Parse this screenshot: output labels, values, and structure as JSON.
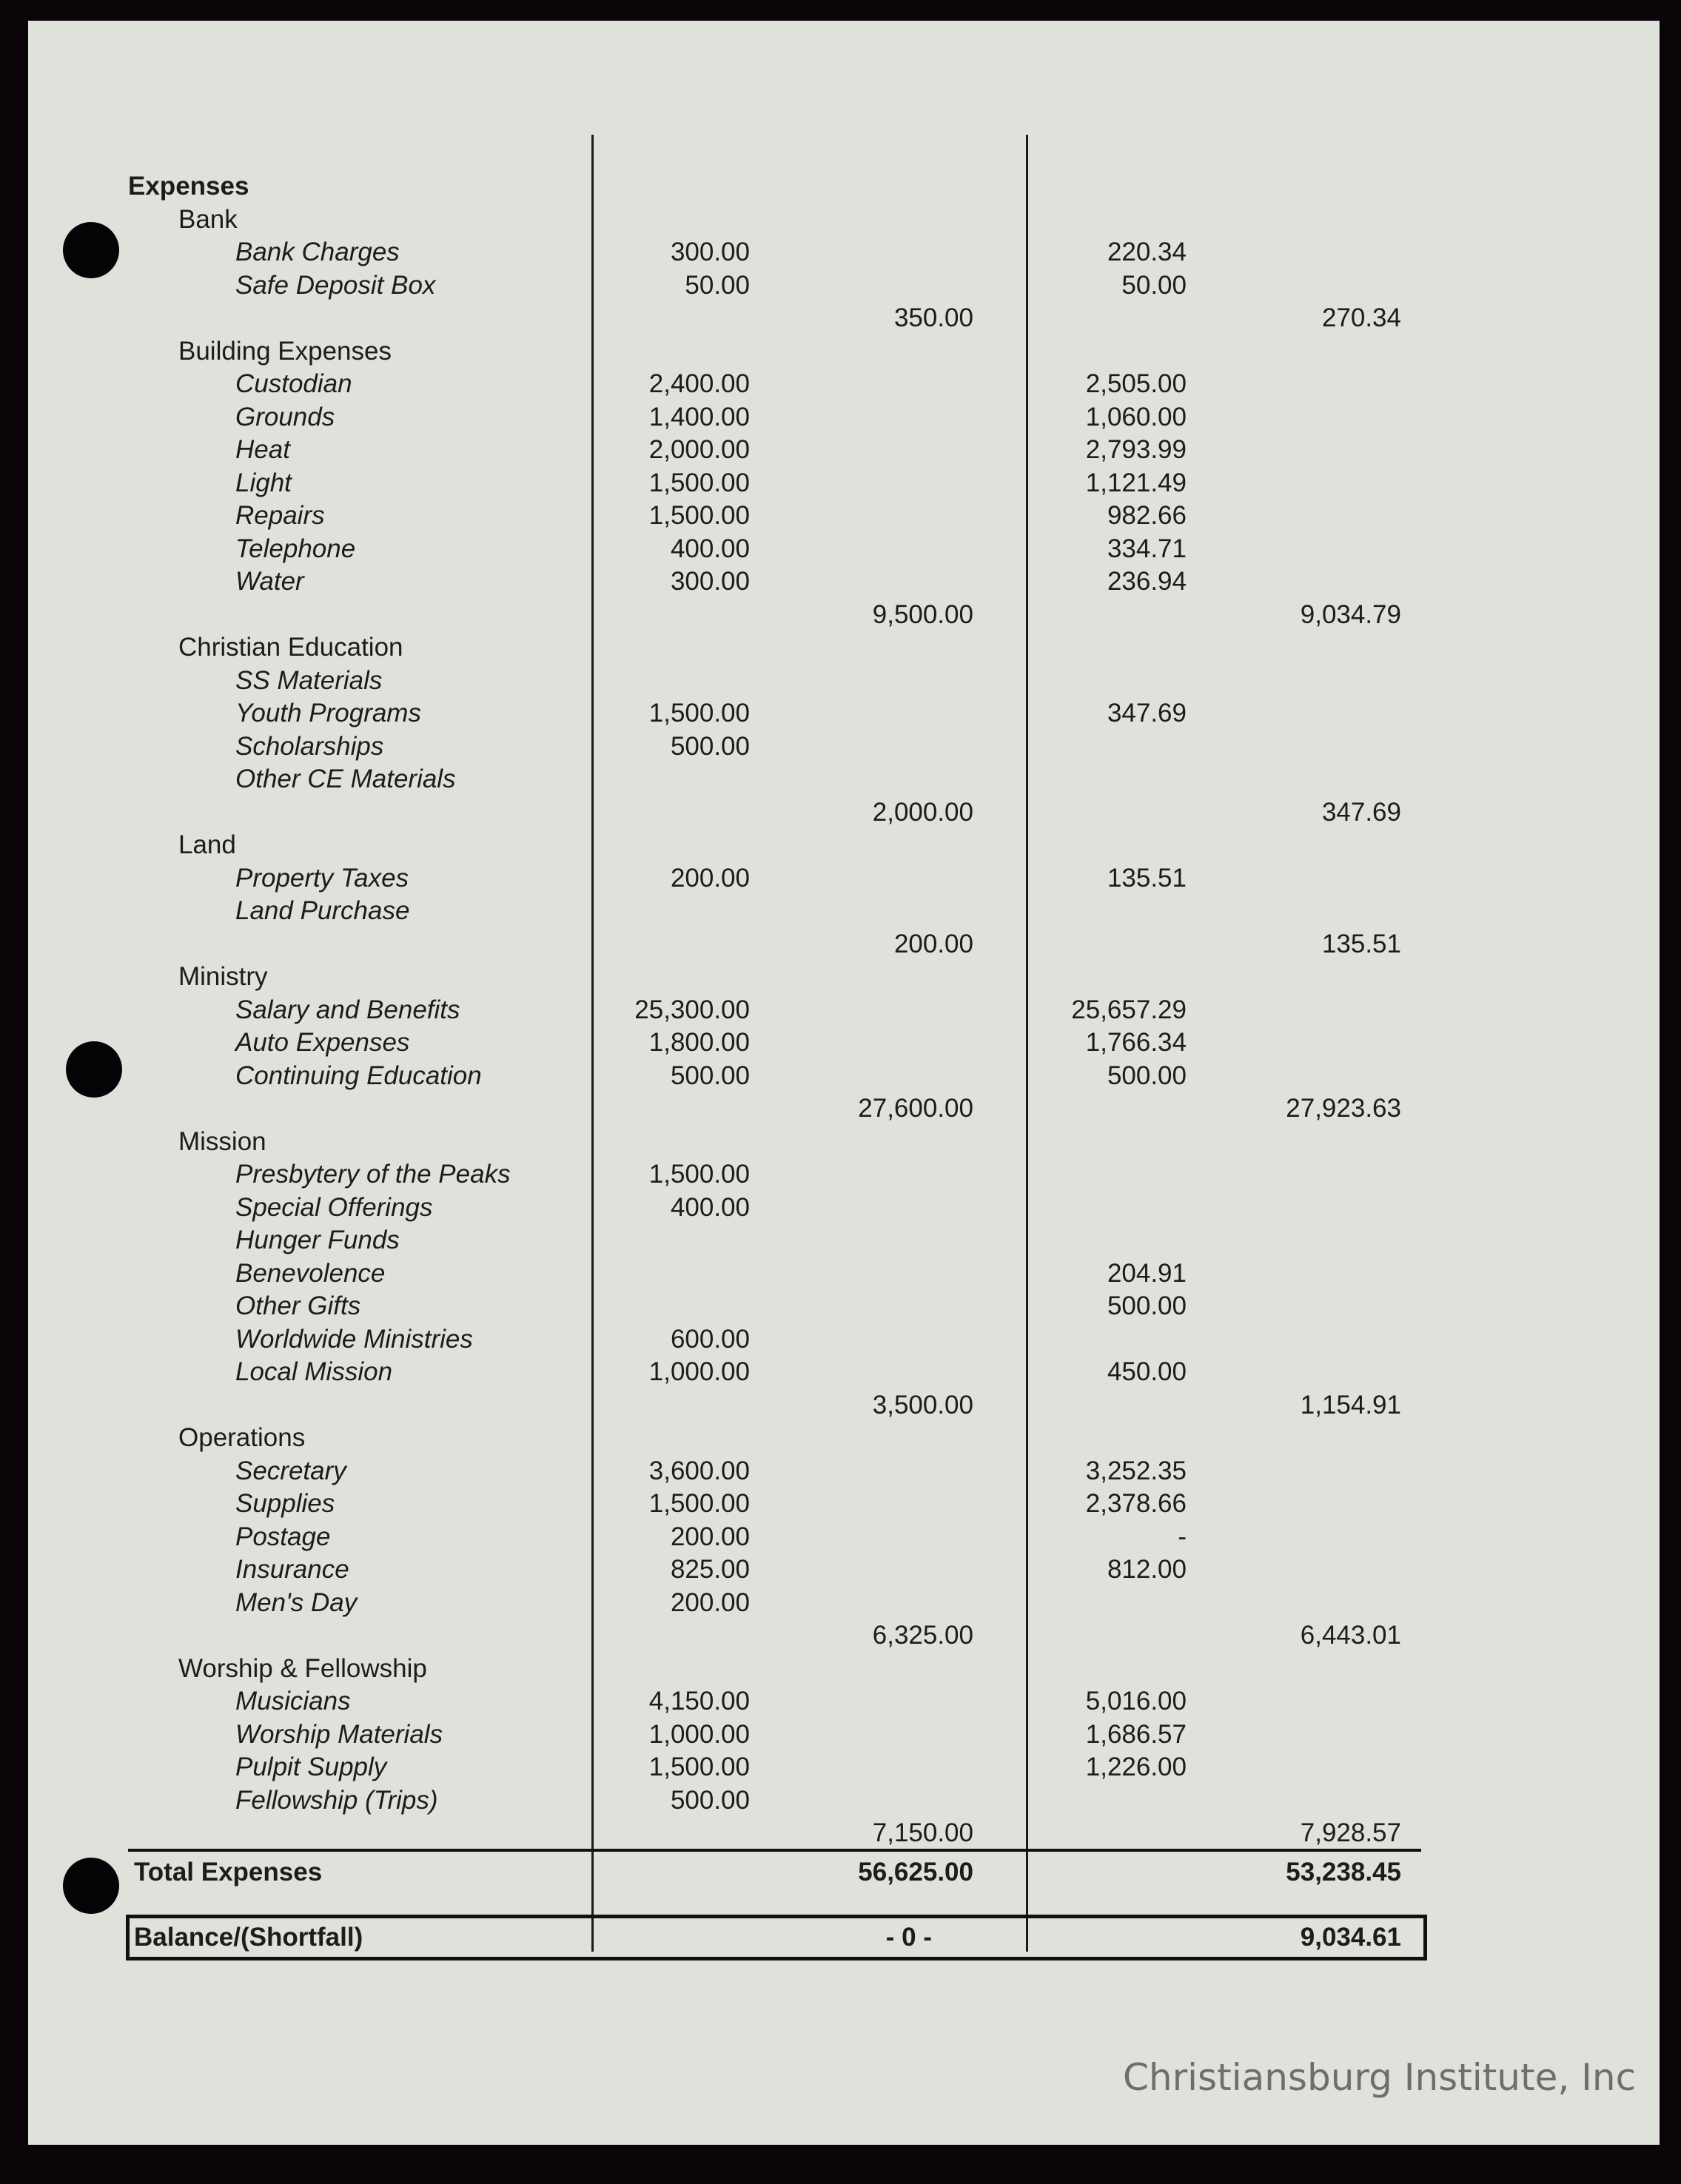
{
  "heading": "Expenses",
  "groups": [
    {
      "name": "Bank",
      "items": [
        {
          "label": "Bank Charges",
          "budget": "300.00",
          "actual": "220.34"
        },
        {
          "label": "Safe Deposit Box",
          "budget": "50.00",
          "actual": "50.00"
        }
      ],
      "budget_total": "350.00",
      "actual_total": "270.34"
    },
    {
      "name": "Building Expenses",
      "items": [
        {
          "label": "Custodian",
          "budget": "2,400.00",
          "actual": "2,505.00"
        },
        {
          "label": "Grounds",
          "budget": "1,400.00",
          "actual": "1,060.00"
        },
        {
          "label": "Heat",
          "budget": "2,000.00",
          "actual": "2,793.99"
        },
        {
          "label": "Light",
          "budget": "1,500.00",
          "actual": "1,121.49"
        },
        {
          "label": "Repairs",
          "budget": "1,500.00",
          "actual": "982.66"
        },
        {
          "label": "Telephone",
          "budget": "400.00",
          "actual": "334.71"
        },
        {
          "label": "Water",
          "budget": "300.00",
          "actual": "236.94"
        }
      ],
      "budget_total": "9,500.00",
      "actual_total": "9,034.79"
    },
    {
      "name": "Christian Education",
      "items": [
        {
          "label": "SS Materials",
          "budget": "",
          "actual": ""
        },
        {
          "label": "Youth Programs",
          "budget": "1,500.00",
          "actual": "347.69"
        },
        {
          "label": "Scholarships",
          "budget": "500.00",
          "actual": ""
        },
        {
          "label": "Other CE Materials",
          "budget": "",
          "actual": ""
        }
      ],
      "budget_total": "2,000.00",
      "actual_total": "347.69"
    },
    {
      "name": "Land",
      "items": [
        {
          "label": "Property Taxes",
          "budget": "200.00",
          "actual": "135.51"
        },
        {
          "label": "Land Purchase",
          "budget": "",
          "actual": ""
        }
      ],
      "budget_total": "200.00",
      "actual_total": "135.51"
    },
    {
      "name": "Ministry",
      "items": [
        {
          "label": "Salary and Benefits",
          "budget": "25,300.00",
          "actual": "25,657.29"
        },
        {
          "label": "Auto Expenses",
          "budget": "1,800.00",
          "actual": "1,766.34"
        },
        {
          "label": "Continuing Education",
          "budget": "500.00",
          "actual": "500.00"
        }
      ],
      "budget_total": "27,600.00",
      "actual_total": "27,923.63"
    },
    {
      "name": "Mission",
      "items": [
        {
          "label": "Presbytery of the Peaks",
          "budget": "1,500.00",
          "actual": ""
        },
        {
          "label": "Special Offerings",
          "budget": "400.00",
          "actual": ""
        },
        {
          "label": "Hunger Funds",
          "budget": "",
          "actual": ""
        },
        {
          "label": "Benevolence",
          "budget": "",
          "actual": "204.91"
        },
        {
          "label": "Other Gifts",
          "budget": "",
          "actual": "500.00"
        },
        {
          "label": "Worldwide Ministries",
          "budget": "600.00",
          "actual": ""
        },
        {
          "label": "Local Mission",
          "budget": "1,000.00",
          "actual": "450.00"
        }
      ],
      "budget_total": "3,500.00",
      "actual_total": "1,154.91"
    },
    {
      "name": "Operations",
      "items": [
        {
          "label": "Secretary",
          "budget": "3,600.00",
          "actual": "3,252.35"
        },
        {
          "label": "Supplies",
          "budget": "1,500.00",
          "actual": "2,378.66"
        },
        {
          "label": "Postage",
          "budget": "200.00",
          "actual": "-"
        },
        {
          "label": "Insurance",
          "budget": "825.00",
          "actual": "812.00"
        },
        {
          "label": "Men's Day",
          "budget": "200.00",
          "actual": ""
        }
      ],
      "budget_total": "6,325.00",
      "actual_total": "6,443.01"
    },
    {
      "name": "Worship & Fellowship",
      "items": [
        {
          "label": "Musicians",
          "budget": "4,150.00",
          "actual": "5,016.00"
        },
        {
          "label": "Worship Materials",
          "budget": "1,000.00",
          "actual": "1,686.57"
        },
        {
          "label": "Pulpit Supply",
          "budget": "1,500.00",
          "actual": "1,226.00"
        },
        {
          "label": "Fellowship (Trips)",
          "budget": "500.00",
          "actual": ""
        }
      ],
      "budget_total": "7,150.00",
      "actual_total": "7,928.57"
    }
  ],
  "total": {
    "label": "Total Expenses",
    "budget": "56,625.00",
    "actual": "53,238.45"
  },
  "balance": {
    "label": "Balance/(Shortfall)",
    "budget": "- 0 -",
    "actual": "9,034.61"
  },
  "watermark": "Christiansburg Institute, Inc"
}
